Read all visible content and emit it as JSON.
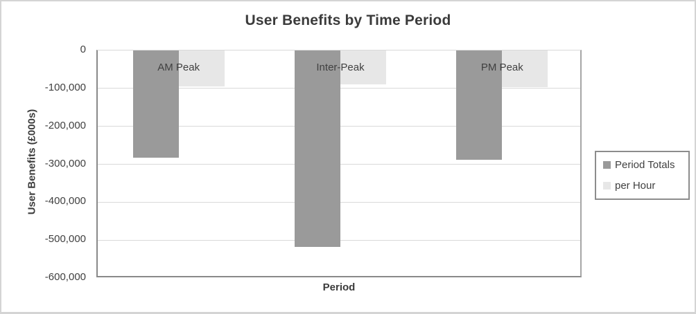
{
  "chart_data": {
    "type": "bar",
    "title": "User Benefits by Time Period",
    "xlabel": "Period",
    "ylabel": "User Benefits (£000s)",
    "categories": [
      "AM Peak",
      "Inter-Peak",
      "PM Peak"
    ],
    "series": [
      {
        "name": "Period Totals",
        "color": "#9a9a9a",
        "values": [
          -283000,
          -518000,
          -289000
        ]
      },
      {
        "name": "per Hour",
        "color": "#e7e7e7",
        "values": [
          -94000,
          -89000,
          -96000
        ]
      }
    ],
    "ylim": [
      -600000,
      0
    ],
    "y_ticks": [
      0,
      -100000,
      -200000,
      -300000,
      -400000,
      -500000,
      -600000
    ],
    "y_tick_labels": [
      "0",
      "-100,000",
      "-200,000",
      "-300,000",
      "-400,000",
      "-500,000",
      "-600,000"
    ],
    "grid": true,
    "legend_position": "right",
    "category_labels_position": "inside-top",
    "colors": {
      "period_totals": "#9a9a9a",
      "per_hour": "#e7e7e7",
      "gridline": "#d9d9d9",
      "axis_line": "#898989",
      "text": "#404040"
    }
  }
}
